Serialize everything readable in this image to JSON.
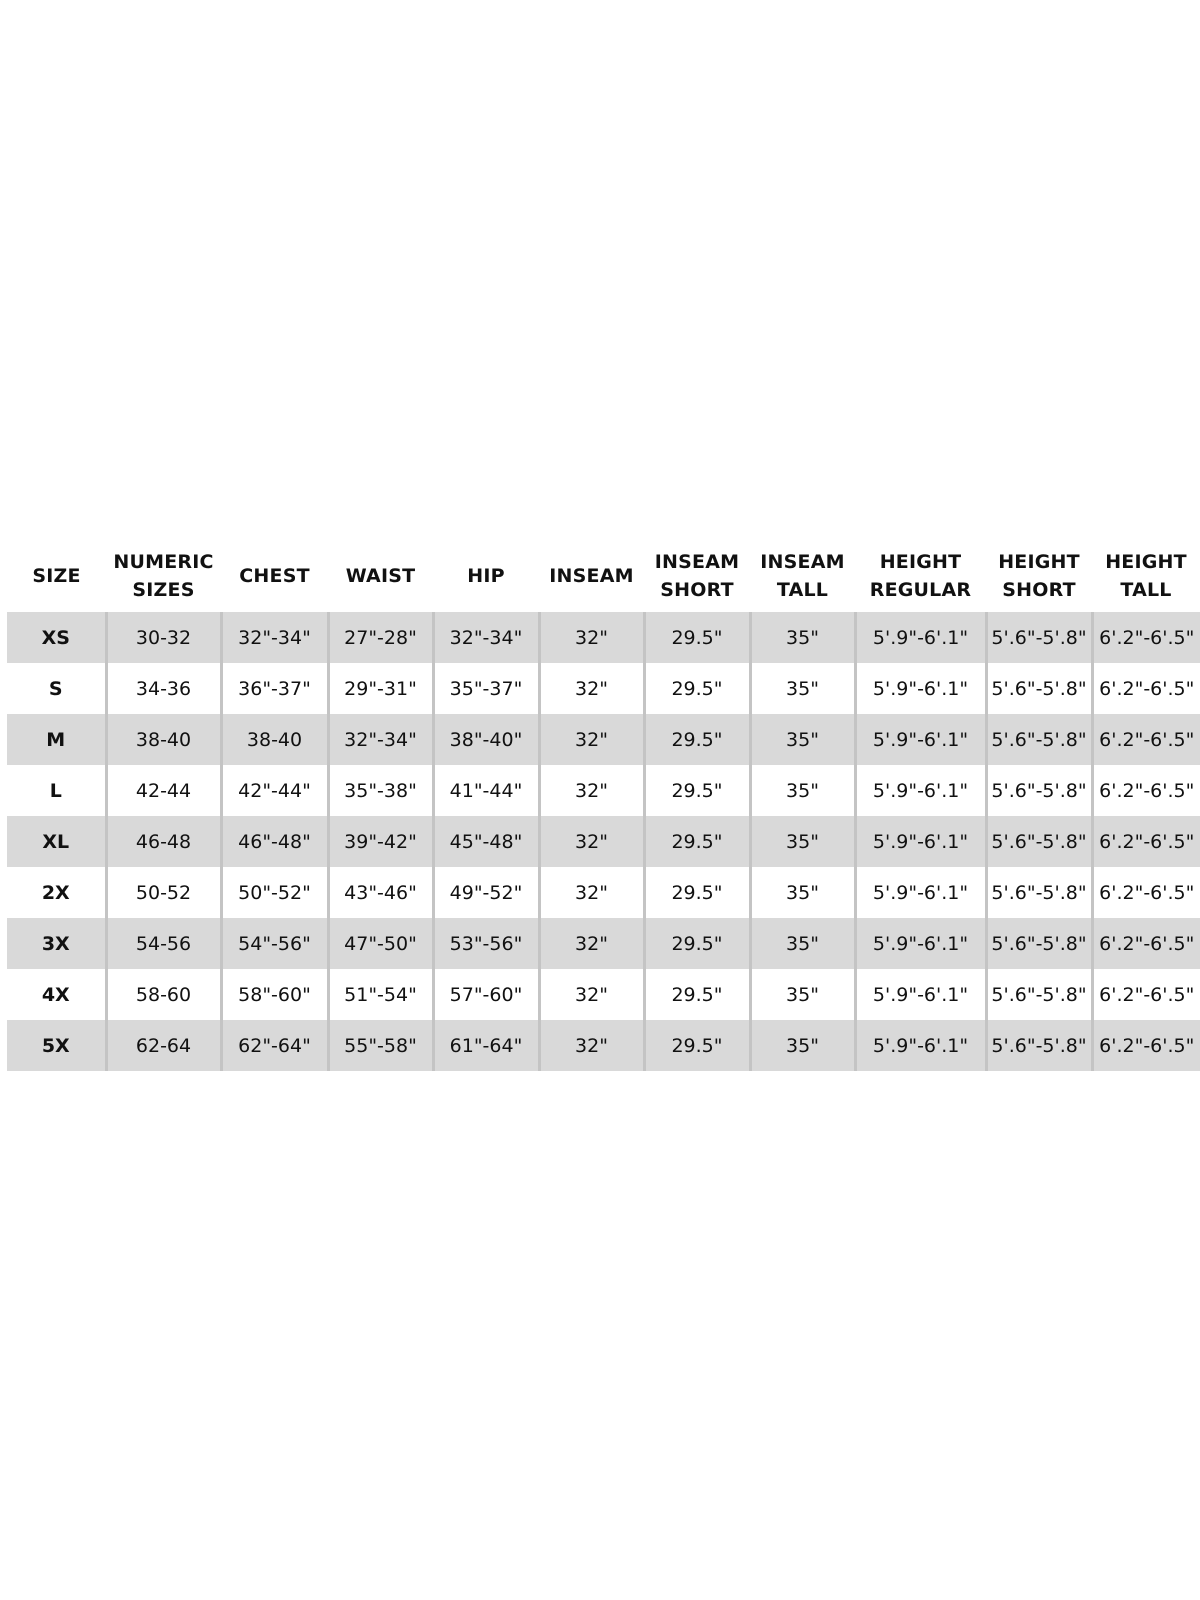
{
  "table": {
    "headers": [
      [
        "SIZE"
      ],
      [
        "NUMERIC",
        "SIZES"
      ],
      [
        "CHEST"
      ],
      [
        "WAIST"
      ],
      [
        "HIP"
      ],
      [
        "INSEAM"
      ],
      [
        "INSEAM",
        "SHORT"
      ],
      [
        "INSEAM",
        "TALL"
      ],
      [
        "HEIGHT",
        "REGULAR"
      ],
      [
        "HEIGHT",
        "SHORT"
      ],
      [
        "HEIGHT",
        "TALL"
      ]
    ],
    "rows": [
      [
        "XS",
        "30-32",
        "32\"-34\"",
        "27\"-28\"",
        "32\"-34\"",
        "32\"",
        "29.5\"",
        "35\"",
        "5'.9\"-6'.1\"",
        "5'.6\"-5'.8\"",
        "6'.2\"-6'.5\""
      ],
      [
        "S",
        "34-36",
        "36\"-37\"",
        "29\"-31\"",
        "35\"-37\"",
        "32\"",
        "29.5\"",
        "35\"",
        "5'.9\"-6'.1\"",
        "5'.6\"-5'.8\"",
        "6'.2\"-6'.5\""
      ],
      [
        "M",
        "38-40",
        "38-40",
        "32\"-34\"",
        "38\"-40\"",
        "32\"",
        "29.5\"",
        "35\"",
        "5'.9\"-6'.1\"",
        "5'.6\"-5'.8\"",
        "6'.2\"-6'.5\""
      ],
      [
        "L",
        "42-44",
        "42\"-44\"",
        "35\"-38\"",
        "41\"-44\"",
        "32\"",
        "29.5\"",
        "35\"",
        "5'.9\"-6'.1\"",
        "5'.6\"-5'.8\"",
        "6'.2\"-6'.5\""
      ],
      [
        "XL",
        "46-48",
        "46\"-48\"",
        "39\"-42\"",
        "45\"-48\"",
        "32\"",
        "29.5\"",
        "35\"",
        "5'.9\"-6'.1\"",
        "5'.6\"-5'.8\"",
        "6'.2\"-6'.5\""
      ],
      [
        "2X",
        "50-52",
        "50\"-52\"",
        "43\"-46\"",
        "49\"-52\"",
        "32\"",
        "29.5\"",
        "35\"",
        "5'.9\"-6'.1\"",
        "5'.6\"-5'.8\"",
        "6'.2\"-6'.5\""
      ],
      [
        "3X",
        "54-56",
        "54\"-56\"",
        "47\"-50\"",
        "53\"-56\"",
        "32\"",
        "29.5\"",
        "35\"",
        "5'.9\"-6'.1\"",
        "5'.6\"-5'.8\"",
        "6'.2\"-6'.5\""
      ],
      [
        "4X",
        "58-60",
        "58\"-60\"",
        "51\"-54\"",
        "57\"-60\"",
        "32\"",
        "29.5\"",
        "35\"",
        "5'.9\"-6'.1\"",
        "5'.6\"-5'.8\"",
        "6'.2\"-6'.5\""
      ],
      [
        "5X",
        "62-64",
        "62\"-64\"",
        "55\"-58\"",
        "61\"-64\"",
        "32\"",
        "29.5\"",
        "35\"",
        "5'.9\"-6'.1\"",
        "5'.6\"-5'.8\"",
        "6'.2\"-6'.5\""
      ]
    ]
  },
  "colors": {
    "row_shade": "#d9d9d9",
    "divider": "#c4c4c4",
    "text": "#111111"
  }
}
